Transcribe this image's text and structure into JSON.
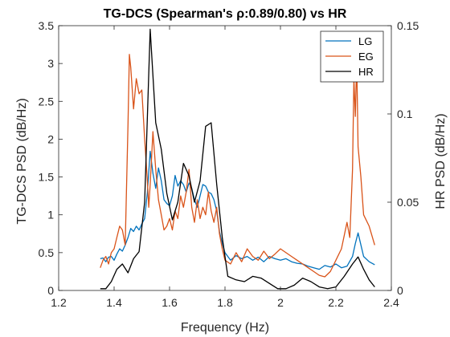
{
  "chart_data": {
    "type": "line",
    "title": "TG-DCS (Spearman's ρ:0.89/0.80) vs HR",
    "xlabel": "Frequency (Hz)",
    "ylabel": "TG-DCS PSD (dB/Hz)",
    "ylabel_right": "HR PSD (dB/Hz)",
    "xlim": [
      1.2,
      2.4
    ],
    "ylim": [
      0,
      3.5
    ],
    "ylim_right": [
      0,
      0.15
    ],
    "x_ticks": [
      "1.2",
      "1.4",
      "1.6",
      "1.8",
      "2",
      "2.2",
      "2.4"
    ],
    "y_ticks": [
      "0",
      "0.5",
      "1",
      "1.5",
      "2",
      "2.5",
      "3",
      "3.5"
    ],
    "y_ticks_right": [
      "0",
      "0.05",
      "0.1",
      "0.15"
    ],
    "grid": false,
    "legend_position": "top-right",
    "colors": {
      "LG": "#0072BD",
      "EG": "#D95319",
      "HR": "#000000"
    },
    "series": [
      {
        "name": "LG",
        "axis": "left",
        "x": [
          1.35,
          1.36,
          1.37,
          1.38,
          1.39,
          1.4,
          1.41,
          1.42,
          1.43,
          1.44,
          1.45,
          1.46,
          1.47,
          1.48,
          1.49,
          1.5,
          1.51,
          1.52,
          1.53,
          1.54,
          1.55,
          1.56,
          1.57,
          1.58,
          1.59,
          1.6,
          1.61,
          1.62,
          1.63,
          1.64,
          1.65,
          1.66,
          1.67,
          1.68,
          1.69,
          1.7,
          1.71,
          1.72,
          1.73,
          1.74,
          1.75,
          1.76,
          1.77,
          1.78,
          1.79,
          1.8,
          1.82,
          1.84,
          1.86,
          1.88,
          1.9,
          1.92,
          1.94,
          1.96,
          1.98,
          2.0,
          2.02,
          2.04,
          2.06,
          2.08,
          2.1,
          2.12,
          2.14,
          2.16,
          2.18,
          2.2,
          2.22,
          2.24,
          2.26,
          2.27,
          2.28,
          2.3,
          2.32,
          2.34
        ],
        "y": [
          0.42,
          0.43,
          0.38,
          0.44,
          0.45,
          0.4,
          0.48,
          0.55,
          0.52,
          0.6,
          0.7,
          0.82,
          0.78,
          0.85,
          0.8,
          0.88,
          0.95,
          1.3,
          1.84,
          1.55,
          1.35,
          1.62,
          1.45,
          1.2,
          1.15,
          1.12,
          1.25,
          1.52,
          1.38,
          1.45,
          1.4,
          1.3,
          1.42,
          1.35,
          1.2,
          1.1,
          1.25,
          1.4,
          1.38,
          1.3,
          1.28,
          1.2,
          1.05,
          0.78,
          0.62,
          0.5,
          0.4,
          0.46,
          0.42,
          0.45,
          0.4,
          0.44,
          0.38,
          0.45,
          0.42,
          0.4,
          0.42,
          0.38,
          0.36,
          0.35,
          0.32,
          0.3,
          0.28,
          0.33,
          0.31,
          0.35,
          0.3,
          0.32,
          0.45,
          0.62,
          0.76,
          0.45,
          0.38,
          0.34
        ]
      },
      {
        "name": "EG",
        "axis": "left",
        "x": [
          1.35,
          1.36,
          1.37,
          1.38,
          1.39,
          1.4,
          1.41,
          1.42,
          1.43,
          1.44,
          1.45,
          1.455,
          1.46,
          1.47,
          1.48,
          1.49,
          1.5,
          1.51,
          1.52,
          1.525,
          1.53,
          1.54,
          1.55,
          1.56,
          1.57,
          1.58,
          1.59,
          1.6,
          1.61,
          1.62,
          1.63,
          1.64,
          1.65,
          1.66,
          1.67,
          1.68,
          1.69,
          1.7,
          1.71,
          1.72,
          1.73,
          1.74,
          1.75,
          1.76,
          1.77,
          1.78,
          1.79,
          1.8,
          1.82,
          1.84,
          1.86,
          1.88,
          1.9,
          1.92,
          1.94,
          1.96,
          1.98,
          2.0,
          2.02,
          2.04,
          2.06,
          2.08,
          2.1,
          2.12,
          2.14,
          2.16,
          2.18,
          2.2,
          2.22,
          2.24,
          2.25,
          2.26,
          2.265,
          2.27,
          2.275,
          2.28,
          2.29,
          2.3,
          2.32,
          2.34
        ],
        "y": [
          0.3,
          0.4,
          0.45,
          0.35,
          0.5,
          0.55,
          0.7,
          0.85,
          0.8,
          0.6,
          2.2,
          3.12,
          2.95,
          2.4,
          2.8,
          2.6,
          2.65,
          2.0,
          1.45,
          1.1,
          1.4,
          2.1,
          1.6,
          1.2,
          1.0,
          0.8,
          0.85,
          0.95,
          0.8,
          1.05,
          0.95,
          1.25,
          1.1,
          1.3,
          1.6,
          1.1,
          0.9,
          1.2,
          0.95,
          1.1,
          1.0,
          1.3,
          1.05,
          0.9,
          1.1,
          0.75,
          0.55,
          0.4,
          0.35,
          0.5,
          0.38,
          0.55,
          0.45,
          0.4,
          0.52,
          0.42,
          0.48,
          0.55,
          0.5,
          0.45,
          0.4,
          0.35,
          0.3,
          0.25,
          0.2,
          0.18,
          0.25,
          0.4,
          0.55,
          0.9,
          0.7,
          1.6,
          2.8,
          2.3,
          3.05,
          1.9,
          1.5,
          1.0,
          0.85,
          0.6
        ]
      },
      {
        "name": "HR",
        "axis": "right",
        "x": [
          1.35,
          1.37,
          1.39,
          1.41,
          1.43,
          1.45,
          1.47,
          1.49,
          1.51,
          1.53,
          1.55,
          1.57,
          1.59,
          1.61,
          1.63,
          1.65,
          1.67,
          1.69,
          1.71,
          1.73,
          1.75,
          1.77,
          1.79,
          1.81,
          1.84,
          1.87,
          1.9,
          1.93,
          1.96,
          1.99,
          2.02,
          2.05,
          2.08,
          2.11,
          2.14,
          2.17,
          2.2,
          2.23,
          2.26,
          2.28,
          2.3,
          2.32,
          2.34
        ],
        "y": [
          0.001,
          0.001,
          0.005,
          0.012,
          0.015,
          0.01,
          0.018,
          0.022,
          0.05,
          0.148,
          0.095,
          0.08,
          0.055,
          0.04,
          0.05,
          0.072,
          0.065,
          0.05,
          0.062,
          0.093,
          0.095,
          0.06,
          0.03,
          0.008,
          0.006,
          0.005,
          0.008,
          0.007,
          0.004,
          0.001,
          0.001,
          0.003,
          0.007,
          0.005,
          0.002,
          0.001,
          0.002,
          0.008,
          0.015,
          0.019,
          0.012,
          0.006,
          0.002
        ]
      }
    ]
  }
}
